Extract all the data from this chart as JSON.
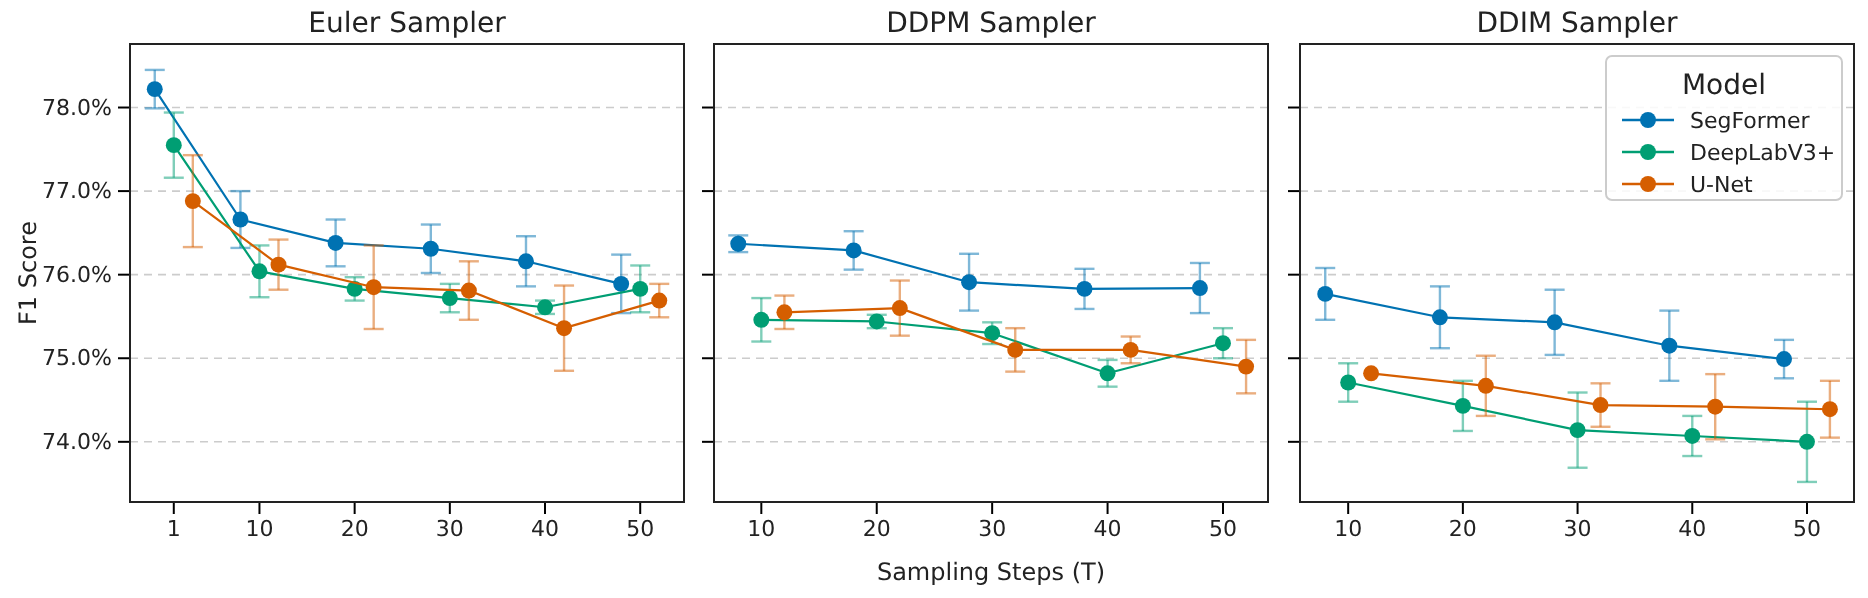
{
  "chart_data": [
    {
      "type": "line",
      "title": "Euler Sampler",
      "ylabel": "F1 Score",
      "xlim": [
        -3.6,
        54.6
      ],
      "xticks": [
        1,
        10,
        20,
        30,
        40,
        50
      ],
      "ylim": [
        73.28,
        78.76
      ],
      "yticks": [
        {
          "value": 74,
          "label": "74.0%"
        },
        {
          "value": 75,
          "label": "75.0%"
        },
        {
          "value": 76,
          "label": "76.0%"
        },
        {
          "value": 77,
          "label": "77.0%"
        },
        {
          "value": 78,
          "label": "78.0%"
        }
      ],
      "grid": "y",
      "marker": "circle",
      "line_style": "solid",
      "series": [
        {
          "color": "#0072b2",
          "x": [
            -1,
            8,
            18,
            28,
            38,
            48
          ],
          "values": [
            78.22,
            76.66,
            76.38,
            76.31,
            76.16,
            75.89
          ],
          "errors": [
            0.23,
            0.34,
            0.28,
            0.29,
            0.3,
            0.35
          ]
        },
        {
          "color": "#009e73",
          "x": [
            1,
            10,
            20,
            30,
            40,
            50
          ],
          "values": [
            77.55,
            76.04,
            75.83,
            75.72,
            75.61,
            75.83
          ],
          "errors": [
            0.39,
            0.31,
            0.14,
            0.17,
            0.08,
            0.28
          ]
        },
        {
          "color": "#d55e00",
          "x": [
            3,
            12,
            22,
            32,
            42,
            52
          ],
          "values": [
            76.88,
            76.12,
            75.85,
            75.81,
            75.36,
            75.69
          ],
          "errors": [
            0.55,
            0.3,
            0.5,
            0.35,
            0.51,
            0.2
          ]
        }
      ]
    },
    {
      "type": "line",
      "title": "DDPM Sampler",
      "xlabel": "Sampling Steps (T)",
      "xlim": [
        5.9,
        53.9
      ],
      "xticks": [
        10,
        20,
        30,
        40,
        50
      ],
      "ylim": [
        73.28,
        78.76
      ],
      "yticks": [
        {
          "value": 74,
          "label": null
        },
        {
          "value": 75,
          "label": null
        },
        {
          "value": 76,
          "label": null
        },
        {
          "value": 77,
          "label": null
        },
        {
          "value": 78,
          "label": null
        }
      ],
      "tick_labels": "x",
      "grid": "y",
      "marker": "circle",
      "line_style": "solid",
      "series": [
        {
          "color": "#0072b2",
          "x": [
            8,
            18,
            28,
            38,
            48
          ],
          "values": [
            76.37,
            76.29,
            75.91,
            75.83,
            75.84
          ],
          "errors": [
            0.1,
            0.23,
            0.34,
            0.24,
            0.3
          ]
        },
        {
          "color": "#009e73",
          "x": [
            10,
            20,
            30,
            40,
            50
          ],
          "values": [
            75.46,
            75.44,
            75.3,
            74.82,
            75.18
          ],
          "errors": [
            0.26,
            0.08,
            0.13,
            0.16,
            0.18
          ]
        },
        {
          "color": "#d55e00",
          "x": [
            12,
            22,
            32,
            42,
            52
          ],
          "values": [
            75.55,
            75.6,
            75.1,
            75.1,
            74.9
          ],
          "errors": [
            0.2,
            0.33,
            0.26,
            0.16,
            0.32
          ]
        }
      ]
    },
    {
      "type": "line",
      "title": "DDIM Sampler",
      "legend_title": "Model",
      "legend": "top right",
      "xlim": [
        5.8,
        54.1
      ],
      "xticks": [
        10,
        20,
        30,
        40,
        50
      ],
      "ylim": [
        73.28,
        78.76
      ],
      "yticks": [
        {
          "value": 74,
          "label": null
        },
        {
          "value": 75,
          "label": null
        },
        {
          "value": 76,
          "label": null
        },
        {
          "value": 77,
          "label": null
        },
        {
          "value": 78,
          "label": null
        }
      ],
      "tick_labels": "x",
      "grid": "y",
      "marker": "circle",
      "line_style": "solid",
      "series": [
        {
          "name": "SegFormer",
          "color": "#0072b2",
          "x": [
            8,
            18,
            28,
            38,
            48
          ],
          "values": [
            75.77,
            75.49,
            75.43,
            75.15,
            74.99
          ],
          "errors": [
            0.31,
            0.37,
            0.39,
            0.42,
            0.23
          ]
        },
        {
          "name": "DeepLabV3+",
          "color": "#009e73",
          "x": [
            10,
            20,
            30,
            40,
            50
          ],
          "values": [
            74.71,
            74.43,
            74.14,
            74.07,
            74.0
          ],
          "errors": [
            0.23,
            0.3,
            0.45,
            0.24,
            0.48
          ]
        },
        {
          "name": "U-Net",
          "color": "#d55e00",
          "x": [
            12,
            22,
            32,
            42,
            52
          ],
          "values": [
            74.82,
            74.67,
            74.44,
            74.42,
            74.39
          ],
          "errors": [
            null,
            0.36,
            0.26,
            0.39,
            0.34
          ]
        }
      ]
    }
  ]
}
